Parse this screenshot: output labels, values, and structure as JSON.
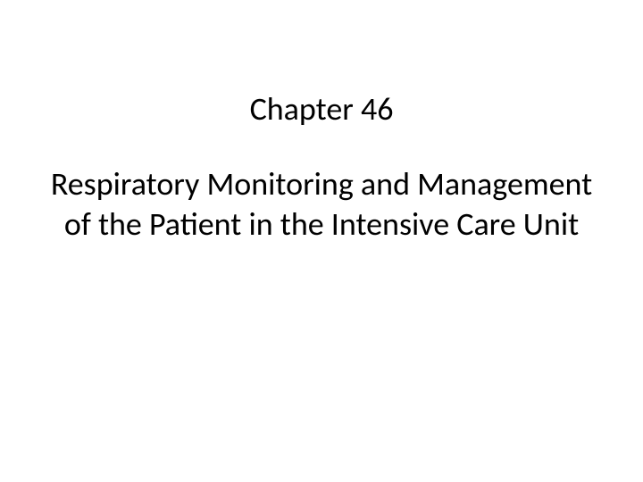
{
  "slide": {
    "chapter_label": "Chapter 46",
    "title": "Respiratory Monitoring and Management of the Patient in the Intensive Care Unit",
    "background_color": "#ffffff",
    "text_color": "#000000",
    "font_family": "Calibri",
    "chapter_fontsize": 36,
    "title_fontsize": 36,
    "font_weight": 400,
    "text_align": "center",
    "line_height": 1.25
  }
}
